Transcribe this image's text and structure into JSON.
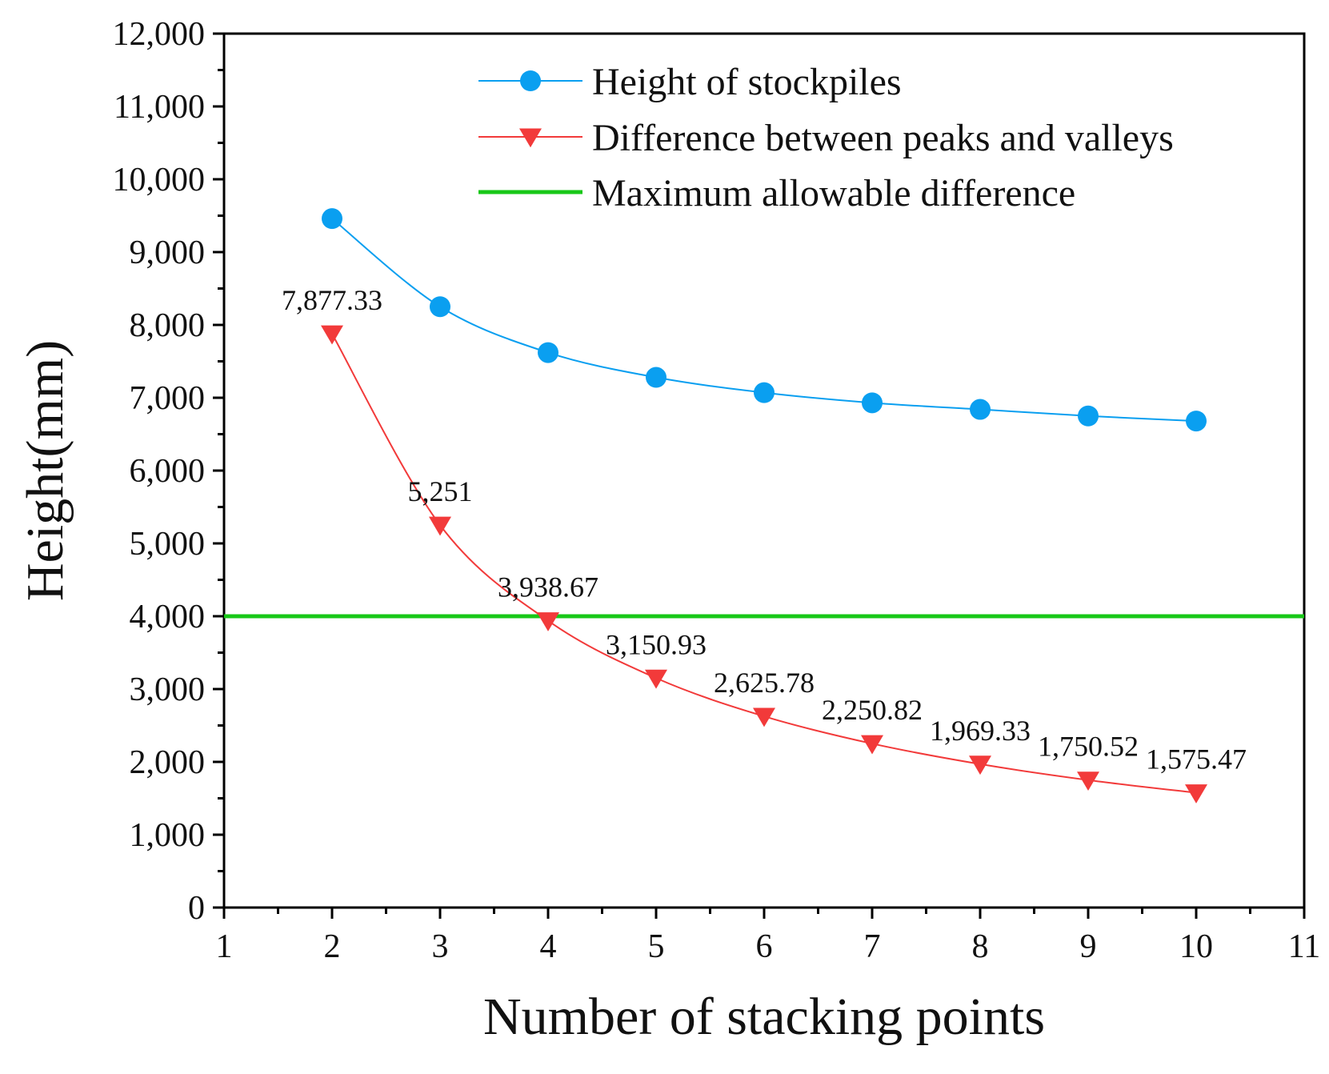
{
  "chart_data": {
    "type": "line",
    "title": "",
    "xlabel": "Number of stacking points",
    "ylabel": "Height(mm)",
    "xlim": [
      1,
      11
    ],
    "ylim": [
      0,
      12000
    ],
    "x_ticks": [
      1,
      2,
      3,
      4,
      5,
      6,
      7,
      8,
      9,
      10,
      11
    ],
    "x_tick_labels": [
      "1",
      "2",
      "3",
      "4",
      "5",
      "6",
      "7",
      "8",
      "9",
      "10",
      "11"
    ],
    "y_ticks": [
      0,
      1000,
      2000,
      3000,
      4000,
      5000,
      6000,
      7000,
      8000,
      9000,
      10000,
      11000,
      12000
    ],
    "y_tick_labels": [
      "0",
      "1,000",
      "2,000",
      "3,000",
      "4,000",
      "5,000",
      "6,000",
      "7,000",
      "8,000",
      "9,000",
      "10,000",
      "11,000",
      "12,000"
    ],
    "grid": false,
    "legend_position": "top-right",
    "x": [
      2,
      3,
      4,
      5,
      6,
      7,
      8,
      9,
      10
    ],
    "series": [
      {
        "name": "Height of stockpiles",
        "marker": "circle",
        "color": "#0a9ff0",
        "values": [
          9460,
          8250,
          7620,
          7280,
          7070,
          6930,
          6840,
          6750,
          6680
        ]
      },
      {
        "name": "Difference between peaks and valleys",
        "marker": "triangle-down",
        "color": "#f23a3a",
        "values": [
          7877.33,
          5251,
          3938.67,
          3150.93,
          2625.78,
          2250.82,
          1969.33,
          1750.52,
          1575.47
        ],
        "data_labels": [
          "7,877.33",
          "5,251",
          "3,938.67",
          "3,150.93",
          "2,625.78",
          "2,250.82",
          "1,969.33",
          "1,750.52",
          "1,575.47"
        ]
      }
    ],
    "reference_lines": [
      {
        "name": "Maximum allowable difference",
        "y": 4000,
        "color": "#18c818"
      }
    ]
  }
}
